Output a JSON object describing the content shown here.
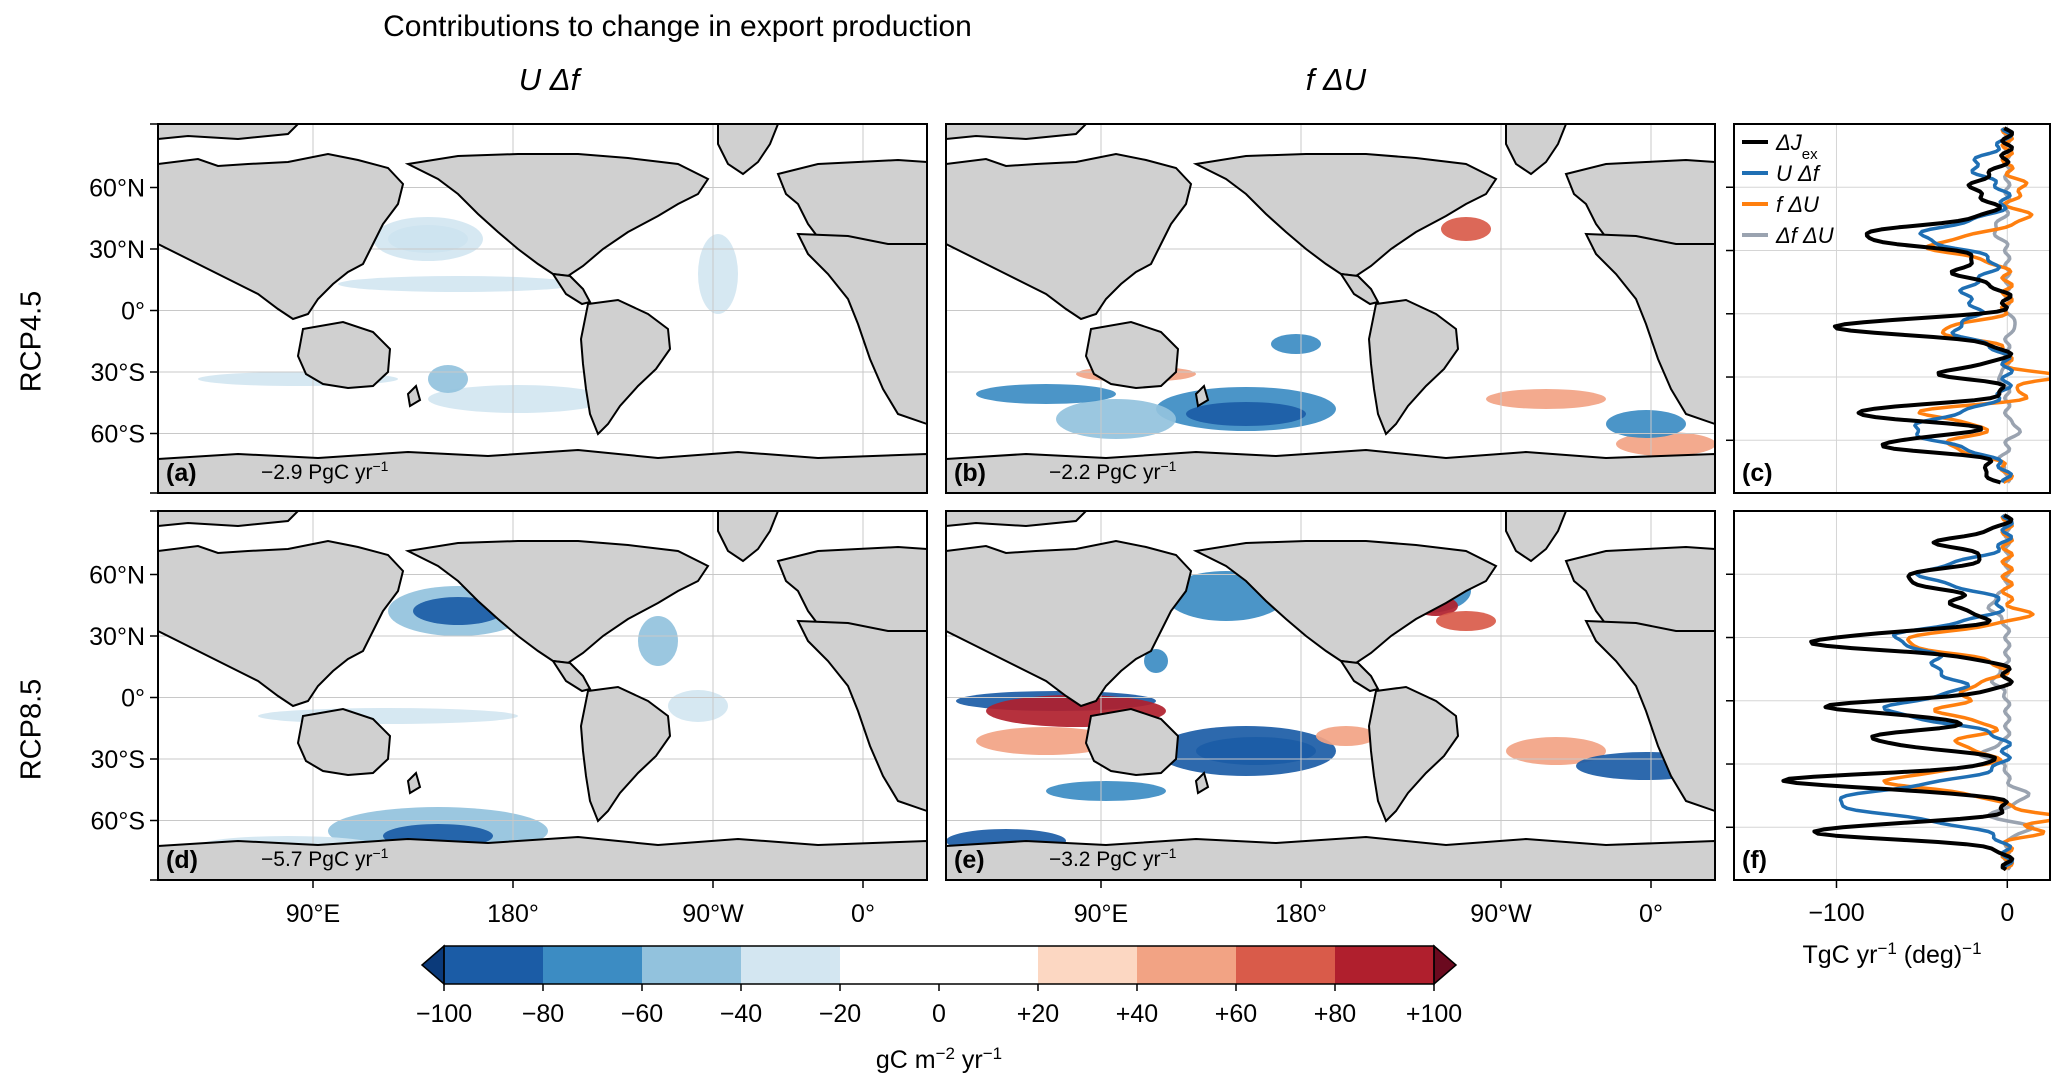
{
  "figure": {
    "title": "Contributions to change in export production",
    "column_titles": [
      "U Δf",
      "f ΔU"
    ],
    "row_titles": [
      "RCP4.5",
      "RCP8.5"
    ]
  },
  "maps": {
    "lat_ticks": [
      "60°N",
      "30°N",
      "0°",
      "30°S",
      "60°S"
    ],
    "lon_ticks": [
      "90°E",
      "180°",
      "90°W",
      "0°"
    ],
    "panels": [
      {
        "label": "(a)",
        "total_value": "−2.9",
        "total_unit": "PgC yr",
        "total_exp": "−1"
      },
      {
        "label": "(b)",
        "total_value": "−2.2",
        "total_unit": "PgC yr",
        "total_exp": "−1"
      },
      {
        "label": "(d)",
        "total_value": "−5.7",
        "total_unit": "PgC yr",
        "total_exp": "−1"
      },
      {
        "label": "(e)",
        "total_value": "−3.2",
        "total_unit": "PgC yr",
        "total_exp": "−1"
      }
    ]
  },
  "colorbar": {
    "ticks": [
      "−100",
      "−80",
      "−60",
      "−40",
      "−20",
      "0",
      "+20",
      "+40",
      "+60",
      "+80",
      "+100"
    ],
    "colors": [
      "#1b5ca6",
      "#3c8cc3",
      "#92c2dd",
      "#d3e6f1",
      "#ffffff",
      "#ffffff",
      "#fcd7c2",
      "#f2a384",
      "#d95b4a",
      "#b01f2d"
    ],
    "under_color": "#0b3a7a",
    "over_color": "#6b0a1f",
    "label_pre": "gC m",
    "label_exp": "−2",
    "label_post": " yr",
    "label_exp2": "−1"
  },
  "chart_data": {
    "type": "line",
    "panels": [
      {
        "label": "(c)",
        "scenario": "RCP4.5"
      },
      {
        "label": "(f)",
        "scenario": "RCP8.5"
      }
    ],
    "xlim": [
      -160,
      25
    ],
    "ylim": [
      -85,
      90
    ],
    "xticks": [
      "−100",
      "0"
    ],
    "xticks_values": [
      -100,
      0
    ],
    "xlabel_pre": "TgC yr",
    "xlabel_exp": "−1",
    "xlabel_post": " (deg)",
    "xlabel_exp2": "−1",
    "y_axis": "latitude (shared with maps)",
    "legend_position": "top-left",
    "legend": [
      {
        "name": "ΔJ",
        "sub": "ex",
        "color": "#000000"
      },
      {
        "name": "U Δf",
        "color": "#1f6fb4"
      },
      {
        "name": "f ΔU",
        "color": "#ff7f0e"
      },
      {
        "name": "Δf ΔU",
        "color": "#9aa3b0"
      }
    ]
  }
}
